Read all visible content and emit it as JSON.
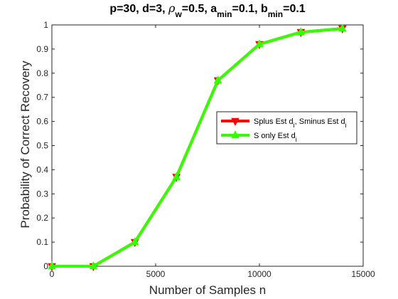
{
  "chart_data": {
    "type": "line",
    "title": {
      "parts": [
        {
          "text": "p=30,  d=3, ",
          "style": "normal"
        },
        {
          "text": "ρ",
          "style": "italic"
        },
        {
          "text": "w",
          "style": "sub"
        },
        {
          "text": "=0.5, a",
          "style": "normal"
        },
        {
          "text": "min",
          "style": "sub"
        },
        {
          "text": "=0.1, b",
          "style": "normal"
        },
        {
          "text": "min",
          "style": "sub"
        },
        {
          "text": "=0.1",
          "style": "normal"
        }
      ]
    },
    "xlabel": "Number of Samples n",
    "ylabel": "Probability of Correct Recovery",
    "xlim": [
      0,
      15000
    ],
    "ylim": [
      0,
      1
    ],
    "x_ticks": [
      0,
      5000,
      10000,
      15000
    ],
    "x_tick_labels": [
      "0",
      "5000",
      "10000",
      "15000"
    ],
    "y_ticks": [
      0,
      0.1,
      0.2,
      0.3,
      0.4,
      0.5,
      0.6,
      0.7,
      0.8,
      0.9,
      1
    ],
    "y_tick_labels": [
      "0",
      "0.1",
      "0.2",
      "0.3",
      "0.4",
      "0.5",
      "0.6",
      "0.7",
      "0.8",
      "0.9",
      "1"
    ],
    "grid": false,
    "legend_position": "right",
    "series": [
      {
        "name_parts": [
          {
            "text": "Splus Est d",
            "style": "normal"
          },
          {
            "text": "i",
            "style": "sub"
          },
          {
            "text": ", Sminus Est d",
            "style": "normal"
          },
          {
            "text": "i",
            "style": "sub"
          }
        ],
        "color": "#ff0000",
        "marker": "triangle-down",
        "x": [
          0,
          2000,
          4000,
          6000,
          8000,
          10000,
          12000,
          14000
        ],
        "y": [
          0,
          0,
          0.1,
          0.37,
          0.77,
          0.92,
          0.97,
          0.985
        ]
      },
      {
        "name_parts": [
          {
            "text": "S only Est d",
            "style": "normal"
          },
          {
            "text": "i",
            "style": "sub"
          }
        ],
        "color": "#33ff00",
        "marker": "triangle-up",
        "x": [
          0,
          2000,
          4000,
          6000,
          8000,
          10000,
          12000,
          14000
        ],
        "y": [
          0,
          0,
          0.1,
          0.37,
          0.77,
          0.92,
          0.97,
          0.985
        ]
      }
    ]
  }
}
